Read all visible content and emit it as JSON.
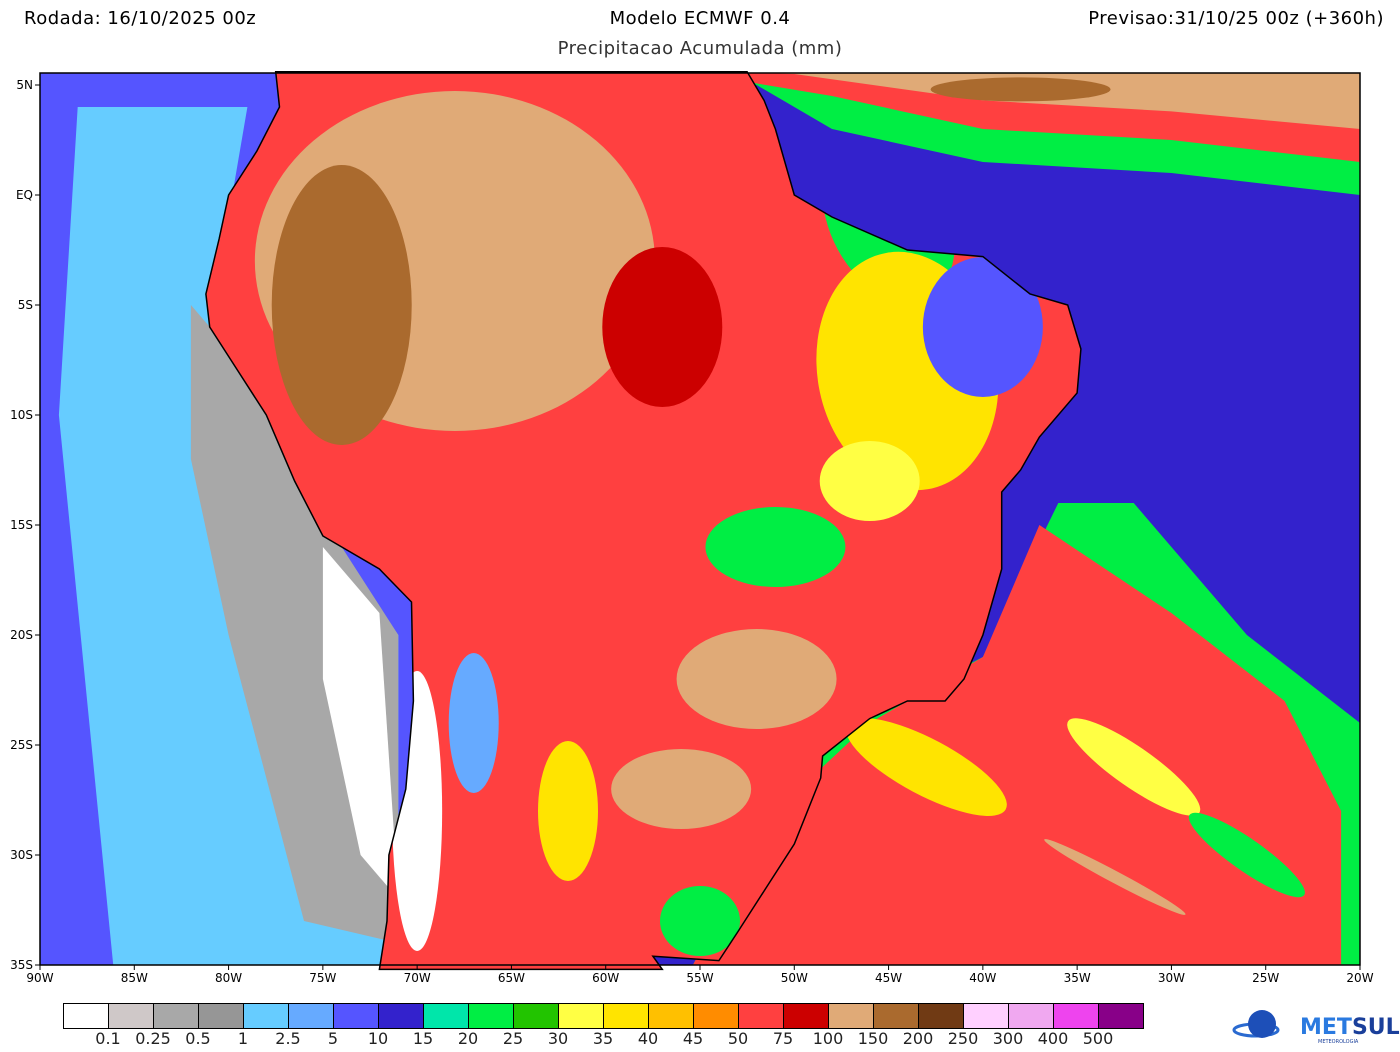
{
  "header": {
    "run": "Rodada: 16/10/2025 00z",
    "model": "Modelo ECMWF 0.4",
    "valid": "Previsao:31/10/25 00z (+360h)",
    "subtitle": "Precipitacao Acumulada (mm)"
  },
  "axes": {
    "lat_labels": [
      "5N",
      "EQ",
      "5S",
      "10S",
      "15S",
      "20S",
      "25S",
      "30S",
      "35S"
    ],
    "lon_labels": [
      "90W",
      "85W",
      "80W",
      "75W",
      "70W",
      "65W",
      "60W",
      "55W",
      "50W",
      "45W",
      "40W",
      "35W",
      "30W",
      "25W",
      "20W"
    ]
  },
  "legend": {
    "colors": [
      "#ffffff",
      "#cfc8c8",
      "#a8a8a8",
      "#969696",
      "#66ccff",
      "#66aaff",
      "#5555ff",
      "#3322cc",
      "#00e6aa",
      "#00ee44",
      "#22c400",
      "#ffff44",
      "#ffe400",
      "#ffc000",
      "#ff8c00",
      "#ff4040",
      "#cc0000",
      "#e0aa77",
      "#aa6a2e",
      "#703a14",
      "#ffd0ff",
      "#f0a8f0",
      "#ee44ee",
      "#880088"
    ],
    "labels": [
      "0.1",
      "0.25",
      "0.5",
      "1",
      "2.5",
      "5",
      "10",
      "15",
      "20",
      "25",
      "30",
      "35",
      "40",
      "45",
      "50",
      "75",
      "100",
      "150",
      "200",
      "250",
      "300",
      "400",
      "500"
    ]
  },
  "logo": {
    "name": "METSUL",
    "tagline": "METEOROLOGIA"
  }
}
